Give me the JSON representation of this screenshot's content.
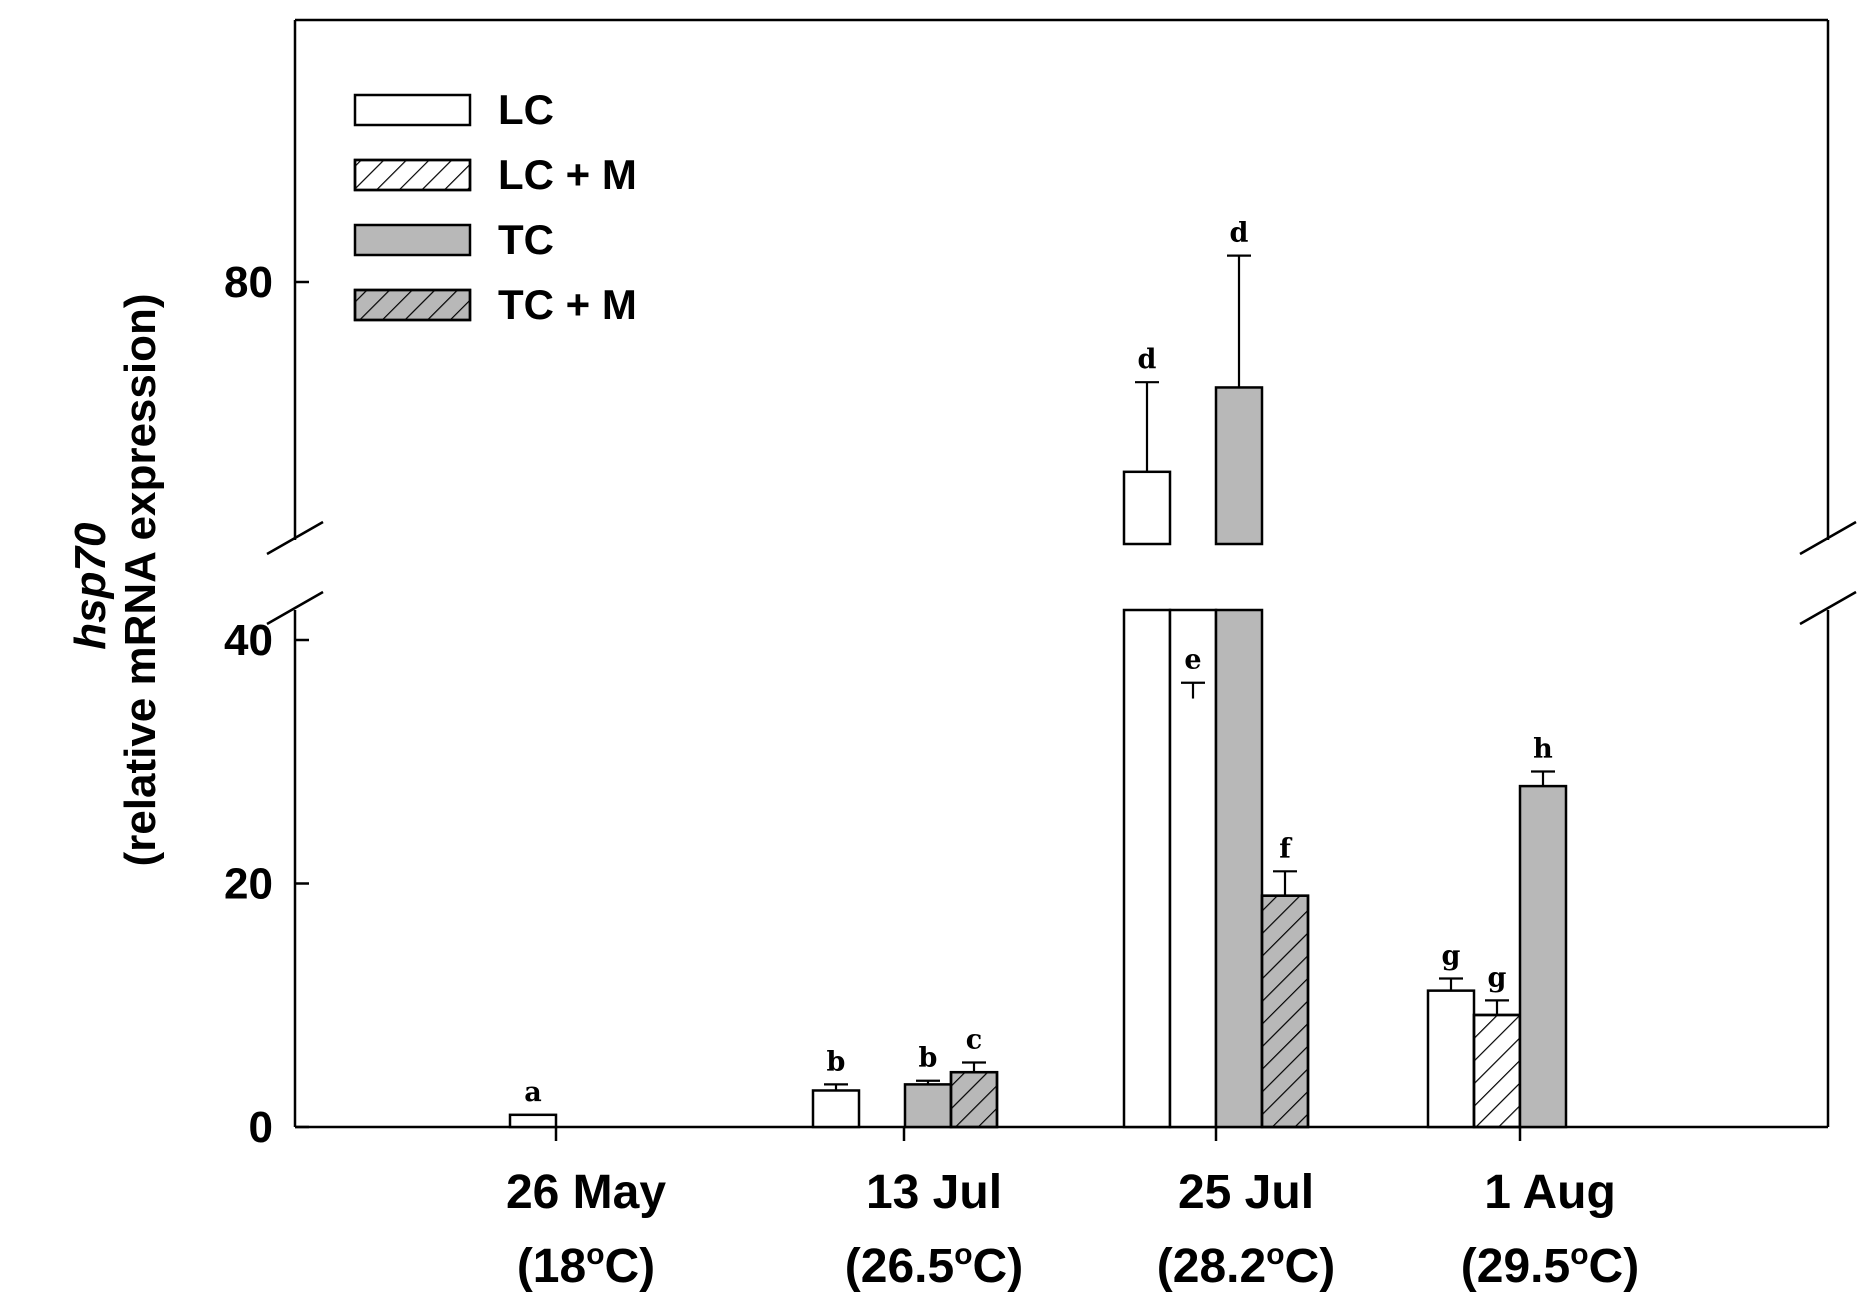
{
  "chart_data": {
    "type": "bar",
    "ylabel_italic": "hsp70",
    "ylabel": "(relative mRNA expression)",
    "yticks": [
      0,
      20,
      40,
      80
    ],
    "y_break": {
      "lower_max": 40,
      "upper_min": 58
    },
    "ylim": [
      0,
      92
    ],
    "categories": [
      {
        "label": "26 May",
        "temp_pre": "(18",
        "temp_sup": "o",
        "temp_post": "C)"
      },
      {
        "label": "13 Jul",
        "temp_pre": "(26.5",
        "temp_sup": "o",
        "temp_post": "C)"
      },
      {
        "label": "25 Jul",
        "temp_pre": "(28.2",
        "temp_sup": "o",
        "temp_post": "C)"
      },
      {
        "label": "1 Aug",
        "temp_pre": "(29.5",
        "temp_sup": "o",
        "temp_post": "C)"
      }
    ],
    "series": [
      {
        "name": "LC",
        "fill": "#ffffff",
        "hatch": false,
        "values": [
          1,
          3,
          62,
          11.2
        ],
        "errors": [
          0,
          0.5,
          8.5,
          1.0
        ],
        "letters": [
          "a",
          "b",
          "d",
          "g"
        ]
      },
      {
        "name": "LC + M",
        "fill": "#ffffff",
        "hatch": true,
        "values": [
          null,
          null,
          40.5,
          9.2
        ],
        "errors": [
          null,
          null,
          1.5,
          1.2
        ],
        "letters": [
          "",
          "",
          "e",
          "g"
        ]
      },
      {
        "name": "TC",
        "fill": "#b8b8b8",
        "hatch": false,
        "values": [
          null,
          3.5,
          70,
          28
        ],
        "errors": [
          null,
          0.3,
          12.5,
          1.2
        ],
        "letters": [
          "",
          "b",
          "d",
          "h"
        ]
      },
      {
        "name": "TC + M",
        "fill": "#b8b8b8",
        "hatch": true,
        "values": [
          null,
          4.5,
          19,
          null
        ],
        "errors": [
          null,
          0.8,
          2.0,
          null
        ],
        "letters": [
          "",
          "c",
          "f",
          ""
        ]
      }
    ],
    "legend_position": "top-left",
    "grid": false
  }
}
